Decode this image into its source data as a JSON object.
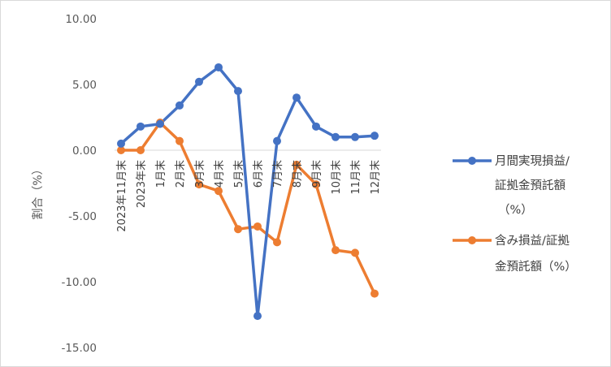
{
  "chart_data": {
    "type": "line",
    "title": "",
    "ylabel": "割合（%）",
    "ylim": [
      -15,
      10
    ],
    "yticks": [
      10,
      5,
      0,
      -5,
      -10,
      -15
    ],
    "ytick_labels": [
      "10.00",
      "5.00",
      "0.00",
      "-5.00",
      "-10.00",
      "-15.00"
    ],
    "categories": [
      "2023年11月末",
      "2023年末",
      "1月末",
      "2月末",
      "3月末",
      "4月末",
      "5月末",
      "6月末",
      "7月末",
      "8月末",
      "9月末",
      "10月末",
      "11月末",
      "12月末"
    ],
    "legend_position": "right",
    "grid": false,
    "series": [
      {
        "name": "月間実現損益/証拠金預託額（%）",
        "legend_lines": [
          "月間実現損益/",
          "証拠金預託額",
          "（%）"
        ],
        "color": "#4472c4",
        "values": [
          0.5,
          1.8,
          2.0,
          3.4,
          5.2,
          6.3,
          4.5,
          -12.6,
          0.7,
          4.0,
          1.8,
          1.0,
          1.0,
          1.1
        ]
      },
      {
        "name": "含み損益/証拠金預託額（%）",
        "legend_lines": [
          "含み損益/証拠",
          "金預託額（%）"
        ],
        "color": "#ed7d31",
        "values": [
          0.0,
          0.0,
          2.1,
          0.7,
          -2.6,
          -3.1,
          -6.0,
          -5.8,
          -7.0,
          -1.1,
          -2.6,
          -7.6,
          -7.8,
          -10.9
        ]
      }
    ]
  }
}
